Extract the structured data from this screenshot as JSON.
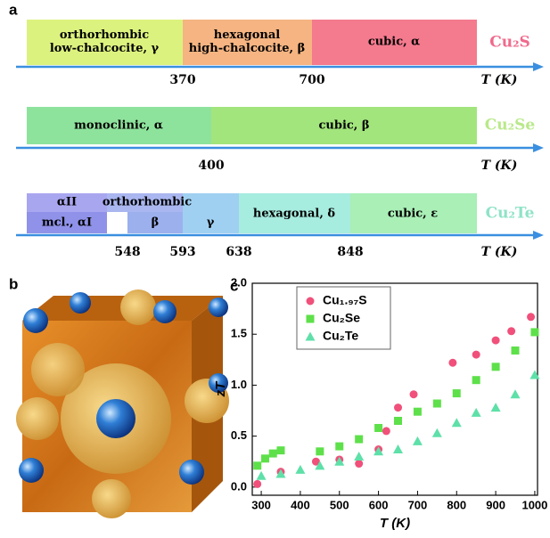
{
  "panel_a": {
    "label": "a",
    "axis_label": "T (K)",
    "rows": [
      {
        "compound": "Cu₂S",
        "phases": [
          {
            "lines": [
              "orthorhombic",
              "low-chalcocite, γ"
            ]
          },
          {
            "lines": [
              "hexagonal",
              "high-chalcocite, β"
            ]
          },
          {
            "lines": [
              "cubic, α"
            ]
          }
        ],
        "transitions": [
          370,
          700
        ]
      },
      {
        "compound": "Cu₂Se",
        "phases": [
          {
            "lines": [
              "monoclinic, α"
            ]
          },
          {
            "lines": [
              "cubic, β"
            ]
          }
        ],
        "transitions": [
          400
        ]
      },
      {
        "compound": "Cu₂Te",
        "phases": [
          {
            "lines": [
              "αII"
            ]
          },
          {
            "lines": [
              "mcl., αI"
            ]
          },
          {
            "lines": [
              "orthorhombic"
            ]
          },
          {
            "lines": [
              "β"
            ]
          },
          {
            "lines": [
              "γ"
            ]
          },
          {
            "lines": [
              "hexagonal, δ"
            ]
          },
          {
            "lines": [
              "cubic, ε"
            ]
          }
        ],
        "transitions": [
          548,
          593,
          638,
          848
        ]
      }
    ]
  },
  "panel_b": {
    "label": "b"
  },
  "chart_data": {
    "type": "scatter",
    "label": "c",
    "x_label": "T (K)",
    "y_label": "zT",
    "legend": "upper-left",
    "xlim": [
      277,
      1007
    ],
    "xticks": [
      300,
      400,
      500,
      600,
      700,
      800,
      900,
      1000
    ],
    "ylim": [
      -0.08,
      2.0
    ],
    "yticks": [
      {
        "value": 0,
        "label": "0.0"
      },
      {
        "value": 0.5,
        "label": "0.5"
      },
      {
        "value": 1,
        "label": "1.0"
      },
      {
        "value": 1.5,
        "label": "1.5"
      },
      {
        "value": 2,
        "label": "2.0"
      }
    ],
    "series": [
      {
        "name": "Cu₁.₉₇S",
        "color": "#f0507a",
        "marker": "circle",
        "x": [
          290,
          350,
          440,
          500,
          550,
          600,
          620,
          650,
          690,
          790,
          850,
          900,
          940,
          990
        ],
        "values": [
          0.03,
          0.15,
          0.25,
          0.27,
          0.23,
          0.37,
          0.55,
          0.78,
          0.91,
          1.22,
          1.3,
          1.44,
          1.53,
          1.67
        ]
      },
      {
        "name": "Cu₂Se",
        "color": "#5ee04a",
        "marker": "square",
        "x": [
          290,
          310,
          330,
          350,
          450,
          500,
          550,
          600,
          650,
          700,
          750,
          800,
          850,
          900,
          950,
          1000
        ],
        "values": [
          0.21,
          0.28,
          0.33,
          0.36,
          0.35,
          0.4,
          0.47,
          0.58,
          0.65,
          0.74,
          0.82,
          0.92,
          1.05,
          1.18,
          1.34,
          1.52
        ]
      },
      {
        "name": "Cu₂Te",
        "color": "#5ee0a8",
        "marker": "triangle",
        "x": [
          300,
          350,
          400,
          450,
          500,
          550,
          600,
          650,
          700,
          750,
          800,
          850,
          900,
          950,
          1000
        ],
        "values": [
          0.11,
          0.13,
          0.17,
          0.21,
          0.25,
          0.3,
          0.35,
          0.37,
          0.45,
          0.53,
          0.63,
          0.73,
          0.78,
          0.91,
          1.1
        ]
      }
    ]
  }
}
